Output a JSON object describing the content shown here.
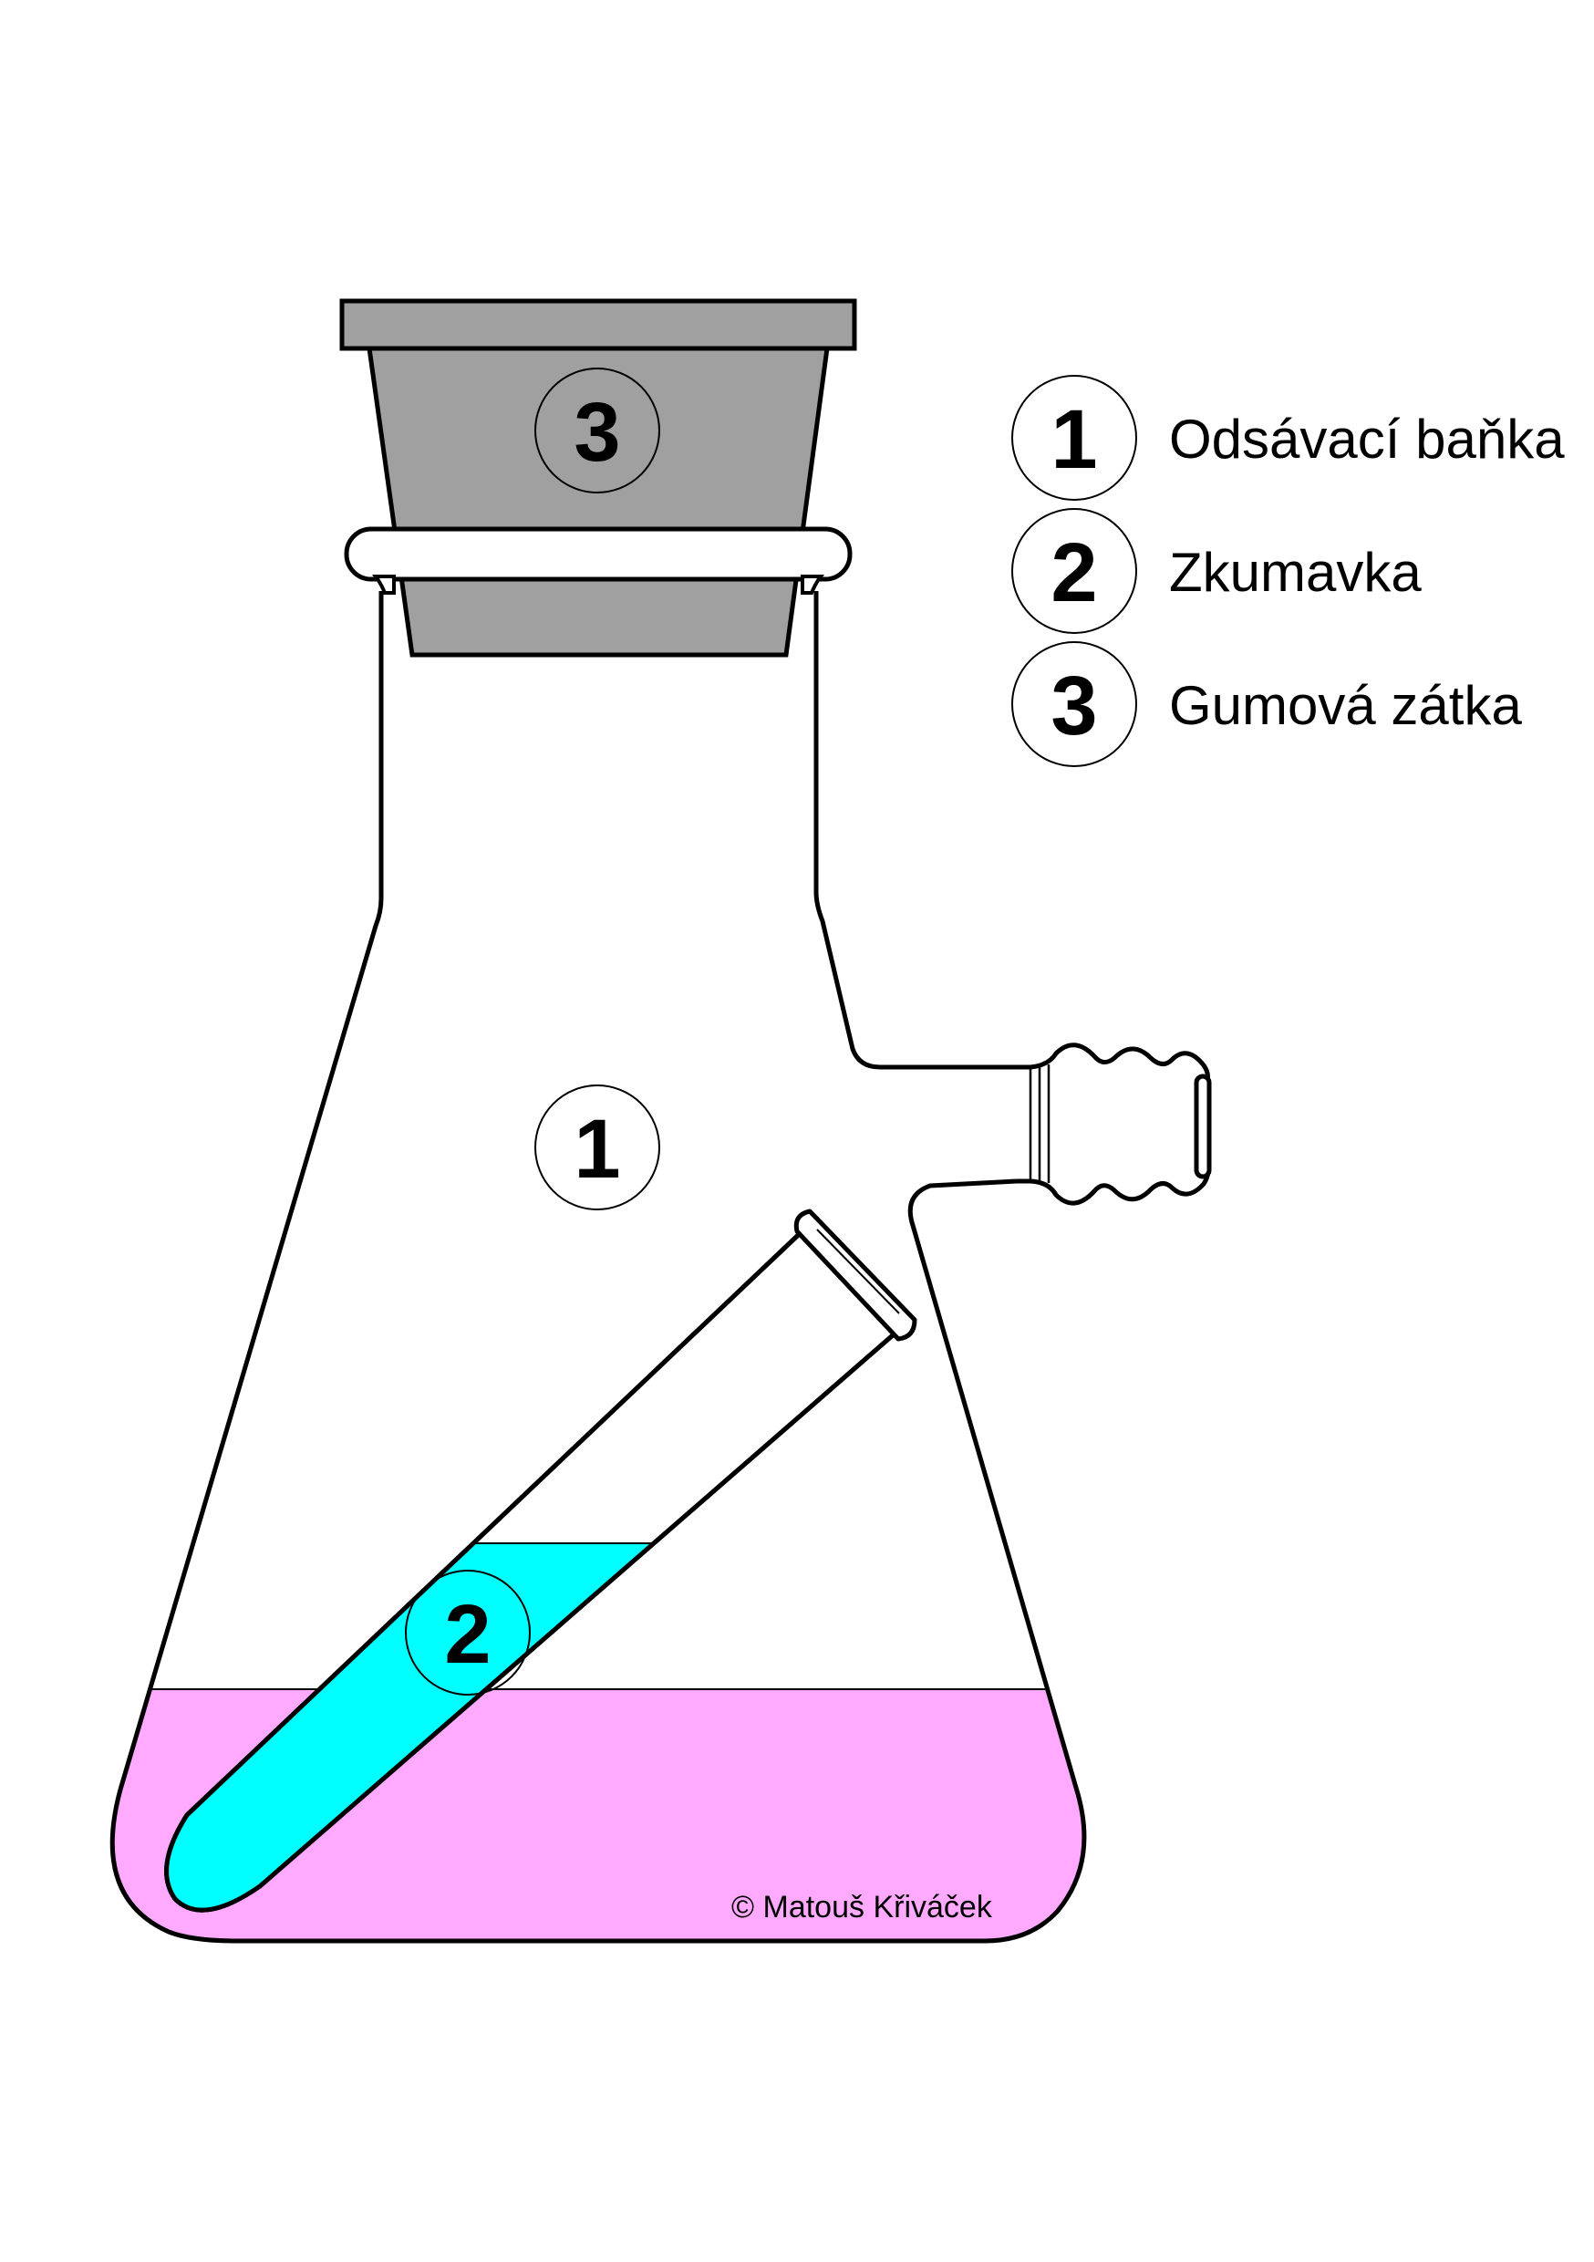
{
  "markers": {
    "flask": "1",
    "tube": "2",
    "stopper": "3"
  },
  "legend": [
    {
      "number": "1",
      "label": "Odsávací baňka"
    },
    {
      "number": "2",
      "label": "Zkumavka"
    },
    {
      "number": "3",
      "label": "Gumová zátka"
    }
  ],
  "copyright": "© Matouš Křiváček",
  "colors": {
    "stopper": "#a0a0a0",
    "flask_liquid": "#ffaaff",
    "tube_liquid": "#00ffff",
    "outline": "#000000",
    "glass": "#ffffff"
  }
}
